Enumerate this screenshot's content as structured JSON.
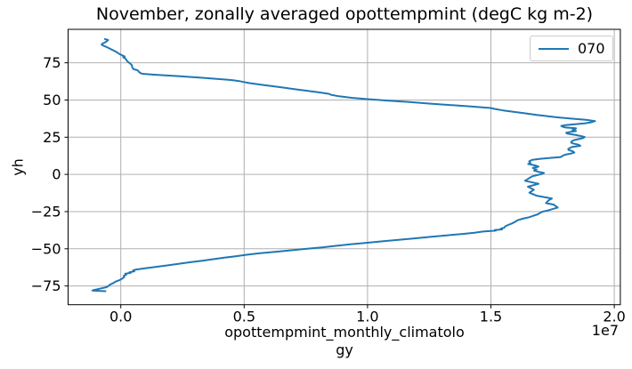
{
  "chart_data": {
    "type": "line",
    "title": "November, zonally averaged opottempmint (degC kg m-2)",
    "xlabel": "opottempmint_monthly_climatology",
    "xlabel_lines": [
      "opottempmint_monthly_climatolo",
      "gy"
    ],
    "ylabel": "yh",
    "x_offset_text": "1e7",
    "x_scale_factor": 10000000,
    "grid": true,
    "legend": {
      "label": "070",
      "position": "upper right"
    },
    "colors": {
      "line": "#1f77b4",
      "grid": "#b0b0b0",
      "spine": "#000000",
      "legend_edge": "#cccccc"
    },
    "xlim": [
      -0.2135,
      2.0245
    ],
    "ylim": [
      -87.6,
      97.5
    ],
    "x_ticks": [
      0.0,
      0.5,
      1.0,
      1.5,
      2.0
    ],
    "x_tick_labels": [
      "0.0",
      "0.5",
      "1.0",
      "1.5",
      "2.0"
    ],
    "y_ticks": [
      75,
      50,
      25,
      0,
      -25,
      -50,
      -75
    ],
    "y_tick_labels": [
      "75",
      "50",
      "25",
      "0",
      "−25",
      "−50",
      "−75"
    ],
    "series": [
      {
        "name": "070",
        "x_units": "1e7 degC kg m-2",
        "y_units": "latitude (yh)",
        "points": [
          [
            -0.062,
            -78.5
          ],
          [
            -0.115,
            -78.1
          ],
          [
            -0.108,
            -77.7
          ],
          [
            -0.095,
            -77.2
          ],
          [
            -0.08,
            -76.6
          ],
          [
            -0.058,
            -75.8
          ],
          [
            -0.05,
            -75.0
          ],
          [
            -0.042,
            -74.0
          ],
          [
            -0.03,
            -73.0
          ],
          [
            -0.02,
            -72.0
          ],
          [
            -0.004,
            -71.0
          ],
          [
            0.006,
            -70.0
          ],
          [
            0.014,
            -69.0
          ],
          [
            0.012,
            -68.2
          ],
          [
            0.022,
            -67.4
          ],
          [
            0.018,
            -66.8
          ],
          [
            0.04,
            -66.2
          ],
          [
            0.035,
            -65.8
          ],
          [
            0.055,
            -65.2
          ],
          [
            0.05,
            -64.6
          ],
          [
            0.06,
            -64.0
          ],
          [
            0.105,
            -63.0
          ],
          [
            0.15,
            -62.0
          ],
          [
            0.195,
            -61.0
          ],
          [
            0.24,
            -60.0
          ],
          [
            0.285,
            -59.0
          ],
          [
            0.33,
            -58.0
          ],
          [
            0.375,
            -57.0
          ],
          [
            0.42,
            -56.0
          ],
          [
            0.465,
            -55.0
          ],
          [
            0.51,
            -54.0
          ],
          [
            0.565,
            -53.0
          ],
          [
            0.63,
            -52.0
          ],
          [
            0.69,
            -51.0
          ],
          [
            0.755,
            -50.0
          ],
          [
            0.82,
            -49.0
          ],
          [
            0.875,
            -48.0
          ],
          [
            0.93,
            -47.0
          ],
          [
            0.995,
            -46.0
          ],
          [
            1.06,
            -45.0
          ],
          [
            1.125,
            -44.0
          ],
          [
            1.19,
            -43.0
          ],
          [
            1.255,
            -42.0
          ],
          [
            1.32,
            -41.0
          ],
          [
            1.385,
            -40.0
          ],
          [
            1.434,
            -39.2
          ],
          [
            1.468,
            -38.4
          ],
          [
            1.52,
            -37.8
          ],
          [
            1.515,
            -37.4
          ],
          [
            1.545,
            -37.0
          ],
          [
            1.54,
            -36.5
          ],
          [
            1.555,
            -35.8
          ],
          [
            1.558,
            -34.9
          ],
          [
            1.57,
            -34.0
          ],
          [
            1.585,
            -33.0
          ],
          [
            1.598,
            -31.9
          ],
          [
            1.607,
            -30.9
          ],
          [
            1.628,
            -29.8
          ],
          [
            1.655,
            -28.8
          ],
          [
            1.673,
            -27.8
          ],
          [
            1.69,
            -26.8
          ],
          [
            1.7,
            -25.8
          ],
          [
            1.71,
            -25.0
          ],
          [
            1.729,
            -24.3
          ],
          [
            1.771,
            -22.3
          ],
          [
            1.754,
            -20.3
          ],
          [
            1.723,
            -19.3
          ],
          [
            1.735,
            -17.3
          ],
          [
            1.747,
            -16.2
          ],
          [
            1.72,
            -15.4
          ],
          [
            1.685,
            -14.3
          ],
          [
            1.656,
            -12.3
          ],
          [
            1.674,
            -10.3
          ],
          [
            1.65,
            -8.3
          ],
          [
            1.693,
            -6.3
          ],
          [
            1.638,
            -4.3
          ],
          [
            1.667,
            -1.3
          ],
          [
            1.705,
            0.2
          ],
          [
            1.715,
            1.0
          ],
          [
            1.69,
            1.8
          ],
          [
            1.675,
            2.6
          ],
          [
            1.685,
            3.4
          ],
          [
            1.67,
            4.3
          ],
          [
            1.693,
            5.2
          ],
          [
            1.68,
            6.0
          ],
          [
            1.651,
            7.0
          ],
          [
            1.66,
            7.8
          ],
          [
            1.655,
            8.8
          ],
          [
            1.668,
            9.8
          ],
          [
            1.7,
            10.5
          ],
          [
            1.74,
            11.1
          ],
          [
            1.783,
            11.7
          ],
          [
            1.79,
            12.4
          ],
          [
            1.8,
            13.2
          ],
          [
            1.825,
            14.0
          ],
          [
            1.838,
            14.7
          ],
          [
            1.83,
            15.6
          ],
          [
            1.815,
            16.4
          ],
          [
            1.813,
            17.0
          ],
          [
            1.82,
            17.8
          ],
          [
            1.83,
            18.5
          ],
          [
            1.862,
            19.2
          ],
          [
            1.855,
            20.0
          ],
          [
            1.832,
            20.8
          ],
          [
            1.825,
            21.5
          ],
          [
            1.828,
            22.3
          ],
          [
            1.838,
            23.1
          ],
          [
            1.86,
            23.9
          ],
          [
            1.875,
            24.5
          ],
          [
            1.88,
            25.1
          ],
          [
            1.862,
            25.9
          ],
          [
            1.84,
            26.6
          ],
          [
            1.81,
            27.4
          ],
          [
            1.805,
            28.0
          ],
          [
            1.822,
            28.6
          ],
          [
            1.845,
            29.1
          ],
          [
            1.83,
            29.8
          ],
          [
            1.84,
            30.4
          ],
          [
            1.845,
            31.0
          ],
          [
            1.8,
            31.6
          ],
          [
            1.79,
            32.1
          ],
          [
            1.785,
            32.6
          ],
          [
            1.8,
            33.1
          ],
          [
            1.84,
            33.7
          ],
          [
            1.88,
            34.3
          ],
          [
            1.905,
            35.0
          ],
          [
            1.922,
            35.8
          ],
          [
            1.89,
            36.6
          ],
          [
            1.82,
            37.6
          ],
          [
            1.775,
            38.3
          ],
          [
            1.735,
            39.0
          ],
          [
            1.71,
            39.5
          ],
          [
            1.685,
            40.0
          ],
          [
            1.64,
            41.0
          ],
          [
            1.595,
            42.0
          ],
          [
            1.55,
            43.0
          ],
          [
            1.515,
            44.0
          ],
          [
            1.5,
            44.6
          ],
          [
            1.42,
            45.6
          ],
          [
            1.34,
            46.6
          ],
          [
            1.25,
            47.6
          ],
          [
            1.17,
            48.6
          ],
          [
            1.08,
            49.6
          ],
          [
            1.0,
            50.6
          ],
          [
            0.935,
            51.5
          ],
          [
            0.885,
            52.5
          ],
          [
            0.852,
            53.5
          ],
          [
            0.845,
            54.1
          ],
          [
            0.822,
            54.7
          ],
          [
            0.79,
            55.4
          ],
          [
            0.745,
            56.4
          ],
          [
            0.7,
            57.4
          ],
          [
            0.655,
            58.4
          ],
          [
            0.61,
            59.4
          ],
          [
            0.565,
            60.4
          ],
          [
            0.52,
            61.4
          ],
          [
            0.497,
            62.1
          ],
          [
            0.48,
            62.7
          ],
          [
            0.455,
            63.3
          ],
          [
            0.39,
            64.2
          ],
          [
            0.325,
            65.0
          ],
          [
            0.24,
            66.0
          ],
          [
            0.135,
            67.0
          ],
          [
            0.088,
            67.6
          ],
          [
            0.078,
            68.3
          ],
          [
            0.073,
            69.1
          ],
          [
            0.068,
            70.0
          ],
          [
            0.052,
            70.7
          ],
          [
            0.048,
            71.5
          ],
          [
            0.046,
            72.4
          ],
          [
            0.045,
            73.4
          ],
          [
            0.04,
            74.2
          ],
          [
            0.034,
            75.0
          ],
          [
            0.027,
            76.0
          ],
          [
            0.022,
            77.0
          ],
          [
            0.018,
            78.0
          ],
          [
            0.01,
            78.7
          ],
          [
            0.016,
            79.3
          ],
          [
            0.006,
            80.0
          ],
          [
            -0.006,
            81.0
          ],
          [
            -0.015,
            82.0
          ],
          [
            -0.026,
            83.0
          ],
          [
            -0.038,
            84.0
          ],
          [
            -0.05,
            85.0
          ],
          [
            -0.06,
            85.8
          ],
          [
            -0.072,
            86.6
          ],
          [
            -0.078,
            87.3
          ],
          [
            -0.073,
            88.0
          ],
          [
            -0.063,
            88.8
          ],
          [
            -0.056,
            89.6
          ],
          [
            -0.051,
            90.3
          ],
          [
            -0.064,
            91.0
          ]
        ]
      }
    ]
  }
}
